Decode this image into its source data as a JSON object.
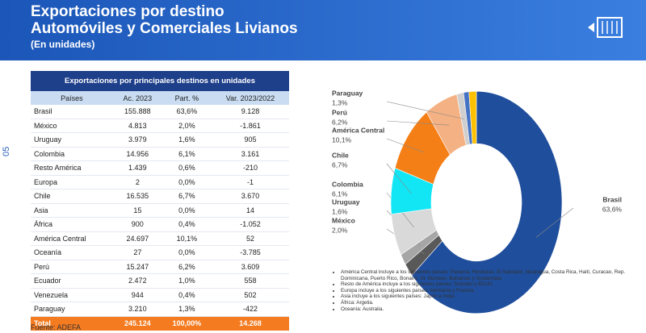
{
  "header": {
    "title_line1": "Exportaciones por destino",
    "title_line2": "Automóviles y Comerciales Livianos",
    "subtitle": "(En unidades)"
  },
  "page_number": "05",
  "table": {
    "title": "Exportaciones por principales destinos en unidades",
    "columns": [
      "Países",
      "Ac. 2023",
      "Part. %",
      "Var. 2023/2022"
    ],
    "rows": [
      [
        "Brasil",
        "155.888",
        "63,6%",
        "9.128"
      ],
      [
        "México",
        "4.813",
        "2,0%",
        "-1.861"
      ],
      [
        "Uruguay",
        "3.979",
        "1,6%",
        "905"
      ],
      [
        "Colombia",
        "14.956",
        "6,1%",
        "3.161"
      ],
      [
        "Resto América",
        "1.439",
        "0,6%",
        "-210"
      ],
      [
        "Europa",
        "2",
        "0,0%",
        "-1"
      ],
      [
        "Chile",
        "16.535",
        "6,7%",
        "3.670"
      ],
      [
        "Asia",
        "15",
        "0,0%",
        "14"
      ],
      [
        "África",
        "900",
        "0,4%",
        "-1.052"
      ],
      [
        "América Central",
        "24.697",
        "10,1%",
        "52"
      ],
      [
        "Oceanía",
        "27",
        "0,0%",
        "-3.785"
      ],
      [
        "Perú",
        "15.247",
        "6,2%",
        "3.609"
      ],
      [
        "Ecuador",
        "2.472",
        "1,0%",
        "558"
      ],
      [
        "Venezuela",
        "944",
        "0,4%",
        "502"
      ],
      [
        "Paraguay",
        "3.210",
        "1,3%",
        "-422"
      ]
    ],
    "total": [
      "Total",
      "245.124",
      "100,00%",
      "14.268"
    ]
  },
  "source": "Fuente: ADEFA",
  "chart_data": {
    "type": "donut",
    "categories": [
      "Brasil",
      "México",
      "Uruguay",
      "Colombia",
      "Chile",
      "América Central",
      "Perú",
      "Paraguay",
      null,
      null
    ],
    "values": [
      63.6,
      2.0,
      1.6,
      6.1,
      6.7,
      10.1,
      6.2,
      1.3,
      1.0,
      1.4
    ],
    "value_labels": [
      "63,6%",
      "2,0%",
      "1,6%",
      "6,1%",
      "6,7%",
      "10,1%",
      "6,2%",
      "1,3%",
      null,
      null
    ],
    "colors": [
      "#1f4e9c",
      "#595959",
      "#a6a6a6",
      "#d9d9d9",
      "#12e6f5",
      "#f57f17",
      "#f4b183",
      "#cfcfcf",
      "#4472c4",
      "#ffc000"
    ]
  },
  "notes": [
    "América Central incluye a los siguientes países: Panamá, Honduras, El Salvador, Nicaragua, Costa Rica, Haití, Curacao, Rep. Dominicana, Puerto Rico, Bonaire, St. Marteen, Bahamas y Guatemala.",
    "Resto de América incluye a los siguientes países: Surinam y EEUU.",
    "Europa incluye a los siguientes países: Alemania y Francia.",
    "Asia incluye a los siguientes países: Japón e India.",
    "África: Argelia.",
    "Oceanía: Australia."
  ]
}
